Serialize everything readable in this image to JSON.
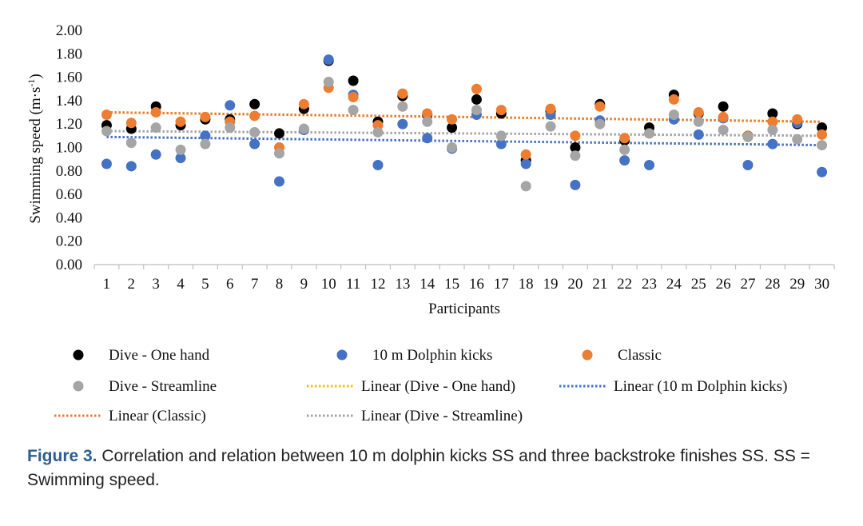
{
  "chart_data": {
    "type": "scatter",
    "ylabel_main": "Swimming speed (m·s",
    "ylabel_sup": "-1",
    "ylabel_close": ")",
    "xlabel": "Participants",
    "ylim": [
      0,
      2
    ],
    "yticks": [
      "0.00",
      "0.20",
      "0.40",
      "0.60",
      "0.80",
      "1.00",
      "1.20",
      "1.40",
      "1.60",
      "1.80",
      "2.00"
    ],
    "categories": [
      "1",
      "2",
      "3",
      "4",
      "5",
      "6",
      "7",
      "8",
      "9",
      "10",
      "11",
      "12",
      "13",
      "14",
      "15",
      "16",
      "17",
      "18",
      "19",
      "20",
      "21",
      "22",
      "23",
      "24",
      "25",
      "26",
      "27",
      "28",
      "29",
      "30"
    ],
    "grid": false,
    "legend_position": "bottom",
    "series": [
      {
        "name": "Dive - One hand",
        "color": "#000000",
        "values": [
          1.19,
          1.16,
          1.35,
          1.19,
          1.24,
          1.24,
          1.37,
          1.12,
          1.33,
          1.74,
          1.57,
          1.22,
          1.44,
          1.28,
          1.17,
          1.41,
          1.29,
          0.89,
          1.31,
          1.0,
          1.37,
          1.06,
          1.17,
          1.45,
          1.29,
          1.35,
          1.1,
          1.29,
          1.2,
          1.17
        ]
      },
      {
        "name": "10 m Dolphin kicks",
        "color": "#4472c4",
        "values": [
          0.86,
          0.84,
          0.94,
          0.91,
          1.1,
          1.36,
          1.03,
          0.71,
          1.15,
          1.75,
          1.45,
          0.85,
          1.2,
          1.08,
          0.99,
          1.28,
          1.03,
          0.86,
          1.28,
          0.68,
          1.23,
          0.89,
          0.85,
          1.24,
          1.11,
          1.25,
          0.85,
          1.03,
          1.21,
          0.79
        ]
      },
      {
        "name": "Classic",
        "color": "#ed7d31",
        "values": [
          1.28,
          1.21,
          1.3,
          1.22,
          1.26,
          1.22,
          1.27,
          1.0,
          1.37,
          1.51,
          1.43,
          1.19,
          1.46,
          1.29,
          1.24,
          1.5,
          1.32,
          0.94,
          1.33,
          1.1,
          1.35,
          1.08,
          1.12,
          1.41,
          1.3,
          1.26,
          1.1,
          1.22,
          1.24,
          1.11
        ]
      },
      {
        "name": "Dive - Streamline",
        "color": "#a5a5a5",
        "values": [
          1.14,
          1.04,
          1.17,
          0.98,
          1.03,
          1.17,
          1.13,
          0.95,
          1.16,
          1.56,
          1.32,
          1.13,
          1.35,
          1.22,
          1.0,
          1.32,
          1.1,
          0.67,
          1.18,
          0.93,
          1.2,
          0.98,
          1.12,
          1.28,
          1.22,
          1.15,
          1.09,
          1.15,
          1.07,
          1.02
        ]
      }
    ],
    "trendlines": [
      {
        "name": "Linear (Dive - One hand)",
        "color": "#ffc000",
        "start": 1.3,
        "end": 1.22
      },
      {
        "name": "Linear (10 m Dolphin kicks)",
        "color": "#4472c4",
        "start": 1.09,
        "end": 1.02
      },
      {
        "name": "Linear (Classic)",
        "color": "#ed7d31",
        "start": 1.3,
        "end": 1.22
      },
      {
        "name": "Linear (Dive - Streamline)",
        "color": "#a5a5a5",
        "start": 1.14,
        "end": 1.1
      }
    ]
  },
  "caption": {
    "label": "Figure 3.",
    "text": " Correlation and relation between 10 m dolphin kicks SS and three backstroke finishes SS. SS = Swimming speed."
  }
}
